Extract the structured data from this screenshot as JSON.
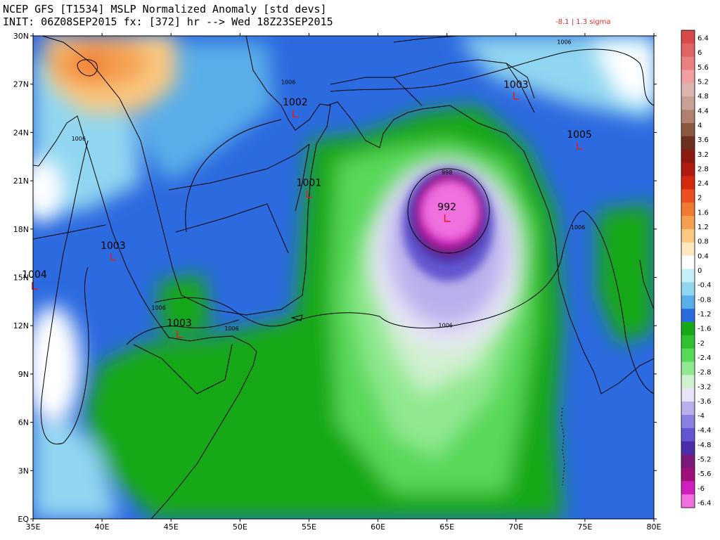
{
  "header": {
    "line1": "NCEP GFS [T1534] MSLP Normalized Anomaly [std devs]",
    "line2": "INIT: 06Z08SEP2015 fx: [372] hr --> Wed 18Z23SEP2015",
    "stat": "-8.1 | 1.3 sigma"
  },
  "map": {
    "lon_labels": [
      "35E",
      "40E",
      "45E",
      "50E",
      "55E",
      "60E",
      "65E",
      "70E",
      "75E",
      "80E"
    ],
    "lat_labels": [
      "30N",
      "27N",
      "24N",
      "21N",
      "18N",
      "15N",
      "12N",
      "9N",
      "6N",
      "3N",
      "EQ"
    ],
    "pressure_centers": [
      {
        "label": "992",
        "lon": 65.0,
        "lat": 19.0
      },
      {
        "label": "1001",
        "lon": 55.0,
        "lat": 20.5
      },
      {
        "label": "1002",
        "lon": 54.0,
        "lat": 25.5
      },
      {
        "label": "1003",
        "lon": 70.0,
        "lat": 26.6
      },
      {
        "label": "1005",
        "lon": 74.6,
        "lat": 23.5
      },
      {
        "label": "1003",
        "lon": 40.8,
        "lat": 16.6
      },
      {
        "label": "1004",
        "lon": 35.1,
        "lat": 14.8
      },
      {
        "label": "1003",
        "lon": 45.6,
        "lat": 11.8
      }
    ],
    "isobar_labels": [
      {
        "label": "1006",
        "lon": 53.5,
        "lat": 27.0
      },
      {
        "label": "1006",
        "lon": 73.5,
        "lat": 29.5
      },
      {
        "label": "1006",
        "lon": 38.3,
        "lat": 23.5
      },
      {
        "label": "1006",
        "lon": 44.1,
        "lat": 13.0
      },
      {
        "label": "1006",
        "lon": 49.4,
        "lat": 11.7
      },
      {
        "label": "1006",
        "lon": 64.9,
        "lat": 11.9
      },
      {
        "label": "1006",
        "lon": 74.5,
        "lat": 18.0
      },
      {
        "label": "998",
        "lon": 65.0,
        "lat": 21.4
      }
    ]
  },
  "colorbar": {
    "labels": [
      "6.4",
      "6",
      "5.6",
      "5.2",
      "4.8",
      "4.4",
      "4",
      "3.6",
      "3.2",
      "2.8",
      "2.4",
      "2",
      "1.6",
      "1.2",
      "0.8",
      "0.4",
      "0",
      "-0.4",
      "-0.8",
      "-1.2",
      "-1.6",
      "-2",
      "-2.4",
      "-2.8",
      "-3.2",
      "-3.6",
      "-4",
      "-4.4",
      "-4.8",
      "-5.2",
      "-5.6",
      "-6",
      "-6.4"
    ],
    "colors": [
      "#d84a4a",
      "#e06464",
      "#e88080",
      "#f0a0a0",
      "#dcb4b0",
      "#c8a098",
      "#b08070",
      "#8c5840",
      "#6e3020",
      "#8c1a10",
      "#b01a10",
      "#d42a10",
      "#ec5020",
      "#f07a30",
      "#f4a050",
      "#fac880",
      "#fde8c0",
      "#ffffff",
      "#c6f0f8",
      "#90d6f0",
      "#5aaee8",
      "#2c6ae0",
      "#18a818",
      "#30c030",
      "#58d858",
      "#90e890",
      "#d0f0d0",
      "#e8e4f8",
      "#b8b0ec",
      "#8a80e0",
      "#6456d0",
      "#4a2ea8",
      "#7a1a7a",
      "#a0107a",
      "#d01ec0",
      "#f070e0"
    ]
  }
}
